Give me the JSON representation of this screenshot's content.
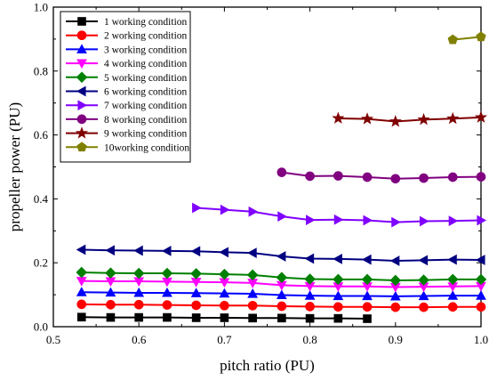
{
  "chart_data": {
    "type": "line",
    "title": "",
    "xlabel": "pitch ratio (PU)",
    "ylabel": "propeller power (PU)",
    "xlim": [
      0.5,
      1.0
    ],
    "ylim": [
      0.0,
      1.0
    ],
    "xticks": [
      "0.5",
      "0.6",
      "0.7",
      "0.8",
      "0.9",
      "1.0"
    ],
    "yticks": [
      "0.0",
      "0.2",
      "0.4",
      "0.6",
      "0.8",
      "1.0"
    ],
    "grid": false,
    "legend_position": "top-left",
    "series": [
      {
        "name": "1 working condition",
        "color": "#000000",
        "marker": "square",
        "x": [
          0.533,
          0.567,
          0.6,
          0.633,
          0.667,
          0.7,
          0.733,
          0.767,
          0.8,
          0.833,
          0.867
        ],
        "y": [
          0.03,
          0.029,
          0.029,
          0.029,
          0.028,
          0.028,
          0.027,
          0.027,
          0.026,
          0.026,
          0.025
        ]
      },
      {
        "name": "2 working condition",
        "color": "#ff0000",
        "marker": "circle",
        "x": [
          0.533,
          0.567,
          0.6,
          0.633,
          0.667,
          0.7,
          0.733,
          0.767,
          0.8,
          0.833,
          0.867,
          0.9,
          0.933,
          0.967,
          1.0
        ],
        "y": [
          0.07,
          0.069,
          0.069,
          0.068,
          0.067,
          0.066,
          0.066,
          0.064,
          0.063,
          0.062,
          0.062,
          0.061,
          0.061,
          0.062,
          0.062
        ]
      },
      {
        "name": "3 working condition",
        "color": "#0000ff",
        "marker": "triangle-up",
        "x": [
          0.533,
          0.567,
          0.6,
          0.633,
          0.667,
          0.7,
          0.733,
          0.767,
          0.8,
          0.833,
          0.867,
          0.9,
          0.933,
          0.967,
          1.0
        ],
        "y": [
          0.108,
          0.107,
          0.106,
          0.106,
          0.105,
          0.104,
          0.103,
          0.099,
          0.097,
          0.096,
          0.096,
          0.095,
          0.096,
          0.097,
          0.097
        ]
      },
      {
        "name": "4 working condition",
        "color": "#ff00ff",
        "marker": "triangle-down",
        "x": [
          0.533,
          0.567,
          0.6,
          0.633,
          0.667,
          0.7,
          0.733,
          0.767,
          0.8,
          0.833,
          0.867,
          0.9,
          0.933,
          0.967,
          1.0
        ],
        "y": [
          0.143,
          0.142,
          0.142,
          0.141,
          0.14,
          0.139,
          0.137,
          0.13,
          0.127,
          0.126,
          0.126,
          0.124,
          0.125,
          0.126,
          0.127
        ]
      },
      {
        "name": "5 working condition",
        "color": "#008000",
        "marker": "diamond",
        "x": [
          0.533,
          0.567,
          0.6,
          0.633,
          0.667,
          0.7,
          0.733,
          0.767,
          0.8,
          0.833,
          0.867,
          0.9,
          0.933,
          0.967,
          1.0
        ],
        "y": [
          0.17,
          0.168,
          0.167,
          0.167,
          0.166,
          0.164,
          0.162,
          0.154,
          0.149,
          0.148,
          0.148,
          0.145,
          0.146,
          0.148,
          0.148
        ]
      },
      {
        "name": "6 working condition",
        "color": "#000080",
        "marker": "triangle-left",
        "x": [
          0.533,
          0.567,
          0.6,
          0.633,
          0.667,
          0.7,
          0.733,
          0.767,
          0.8,
          0.833,
          0.867,
          0.9,
          0.933,
          0.967,
          1.0
        ],
        "y": [
          0.241,
          0.239,
          0.238,
          0.237,
          0.236,
          0.233,
          0.231,
          0.22,
          0.213,
          0.212,
          0.21,
          0.206,
          0.208,
          0.21,
          0.209
        ]
      },
      {
        "name": "7 working condition",
        "color": "#8000ff",
        "marker": "triangle-right",
        "x": [
          0.667,
          0.7,
          0.733,
          0.767,
          0.8,
          0.833,
          0.867,
          0.9,
          0.933,
          0.967,
          1.0
        ],
        "y": [
          0.372,
          0.366,
          0.36,
          0.345,
          0.334,
          0.335,
          0.333,
          0.327,
          0.33,
          0.331,
          0.333
        ]
      },
      {
        "name": "8 working condition",
        "color": "#800080",
        "marker": "circle",
        "x": [
          0.767,
          0.8,
          0.833,
          0.867,
          0.9,
          0.933,
          0.967,
          1.0
        ],
        "y": [
          0.483,
          0.471,
          0.472,
          0.468,
          0.463,
          0.465,
          0.468,
          0.469
        ]
      },
      {
        "name": "9 working condition",
        "color": "#800000",
        "marker": "star",
        "x": [
          0.833,
          0.867,
          0.9,
          0.933,
          0.967,
          1.0
        ],
        "y": [
          0.652,
          0.65,
          0.642,
          0.648,
          0.651,
          0.655
        ]
      },
      {
        "name": "10working condition",
        "color": "#808000",
        "marker": "pentagon",
        "x": [
          0.967,
          1.0
        ],
        "y": [
          0.898,
          0.907
        ]
      }
    ]
  }
}
